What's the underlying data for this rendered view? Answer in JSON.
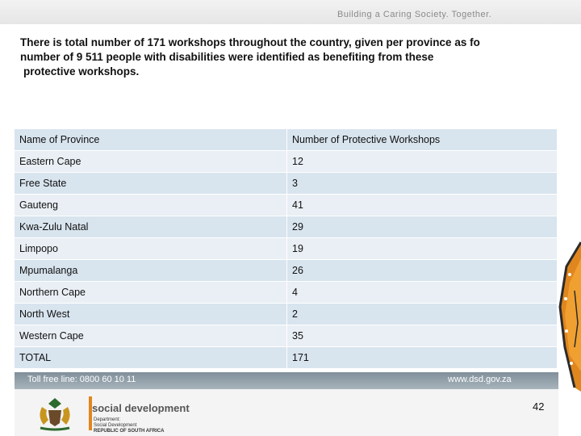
{
  "header": {
    "tagline": "Building a Caring Society. Together."
  },
  "intro": {
    "line1": "There is total number of 171 workshops throughout the country, given per province as fo",
    "line2": "number of 9 511 people with disabilities were identified as benefiting from these",
    "line3": "protective workshops."
  },
  "table": {
    "headers": [
      "Name of Province",
      "Number of Protective Workshops"
    ],
    "rows": [
      [
        "Eastern Cape",
        "12"
      ],
      [
        "Free State",
        "3"
      ],
      [
        "Gauteng",
        "41"
      ],
      [
        "Kwa-Zulu Natal",
        "29"
      ],
      [
        "Limpopo",
        "19"
      ],
      [
        "Mpumalanga",
        "26"
      ],
      [
        "Northern Cape",
        "4"
      ],
      [
        "North West",
        "2"
      ],
      [
        "Western Cape",
        "35"
      ],
      [
        "TOTAL",
        "171"
      ]
    ]
  },
  "footer": {
    "tollfree": "Toll free line: 0800 60 10 11",
    "website": "www.dsd.gov.za",
    "page_number": "42",
    "logo_name": "social development",
    "logo_sub1": "Department:",
    "logo_sub2": "Social Development",
    "logo_sub3": "REPUBLIC OF SOUTH AFRICA"
  },
  "colors": {
    "row_dark": "#d8e4ee",
    "row_light": "#e9eff5",
    "band": "#8b9aa4"
  }
}
